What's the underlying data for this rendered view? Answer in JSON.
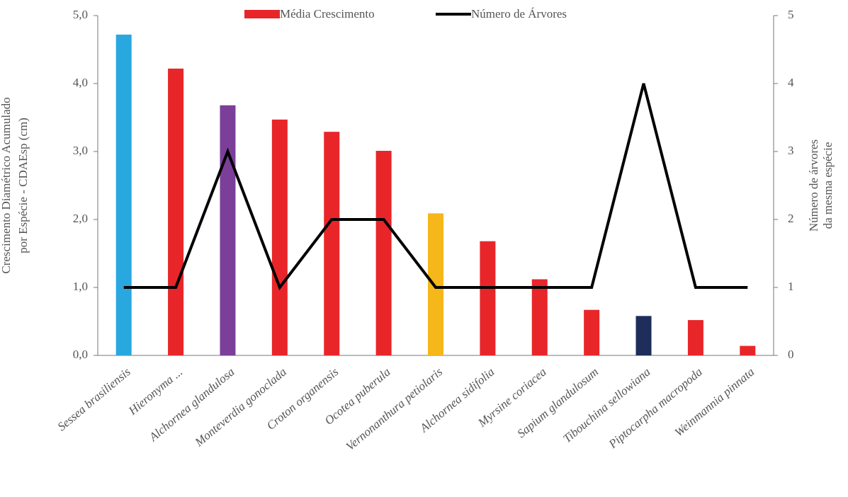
{
  "chart_data": {
    "type": "bar",
    "categories": [
      "Sessea brasiliensis",
      "Hieronyma ...",
      "Alchornea glandulosa",
      "Monteverdia gonoclada",
      "Croton organensis",
      "Ocotea puberula",
      "Vernonanthura petiolaris",
      "Alchornea sidifolia",
      "Myrsine coriacea",
      "Sapium glandulosum",
      "Tibouchina sellowiana",
      "Piptocarpha macropoda",
      "Weinmannia pinnata"
    ],
    "series": [
      {
        "name": "Média Crescimento",
        "type": "bar",
        "color": "#e8262a",
        "colors": [
          "#29a8e0",
          "#e8262a",
          "#7b3f99",
          "#e8262a",
          "#e8262a",
          "#e8262a",
          "#f5b719",
          "#e8262a",
          "#e8262a",
          "#e8262a",
          "#1f2d5a",
          "#e8262a",
          "#e8262a"
        ],
        "values": [
          4.72,
          4.22,
          3.68,
          3.47,
          3.29,
          3.01,
          2.09,
          1.68,
          1.12,
          0.67,
          0.58,
          0.52,
          0.14
        ]
      },
      {
        "name": "Número de Árvores",
        "type": "line",
        "axis": "y2",
        "color": "#000000",
        "values": [
          1,
          1,
          3,
          1,
          2,
          2,
          1,
          1,
          1,
          1,
          4,
          1,
          1
        ]
      }
    ],
    "ylabel": [
      "Crescimento Diamétrico Acumulado",
      "por Espécie - CDAEsp (cm)"
    ],
    "y2label": [
      "Número de árvores",
      "da mesma espécie"
    ],
    "ylim": [
      0,
      5
    ],
    "yticks": [
      {
        "value": 0,
        "label": "0,0"
      },
      {
        "value": 1,
        "label": "1,0"
      },
      {
        "value": 2,
        "label": "2,0"
      },
      {
        "value": 3,
        "label": "3,0"
      },
      {
        "value": 4,
        "label": "4,0"
      },
      {
        "value": 5,
        "label": "5,0"
      }
    ],
    "y2lim": [
      0,
      5
    ],
    "y2ticks": [
      0,
      1,
      2,
      3,
      4,
      5
    ],
    "legend": "top"
  }
}
